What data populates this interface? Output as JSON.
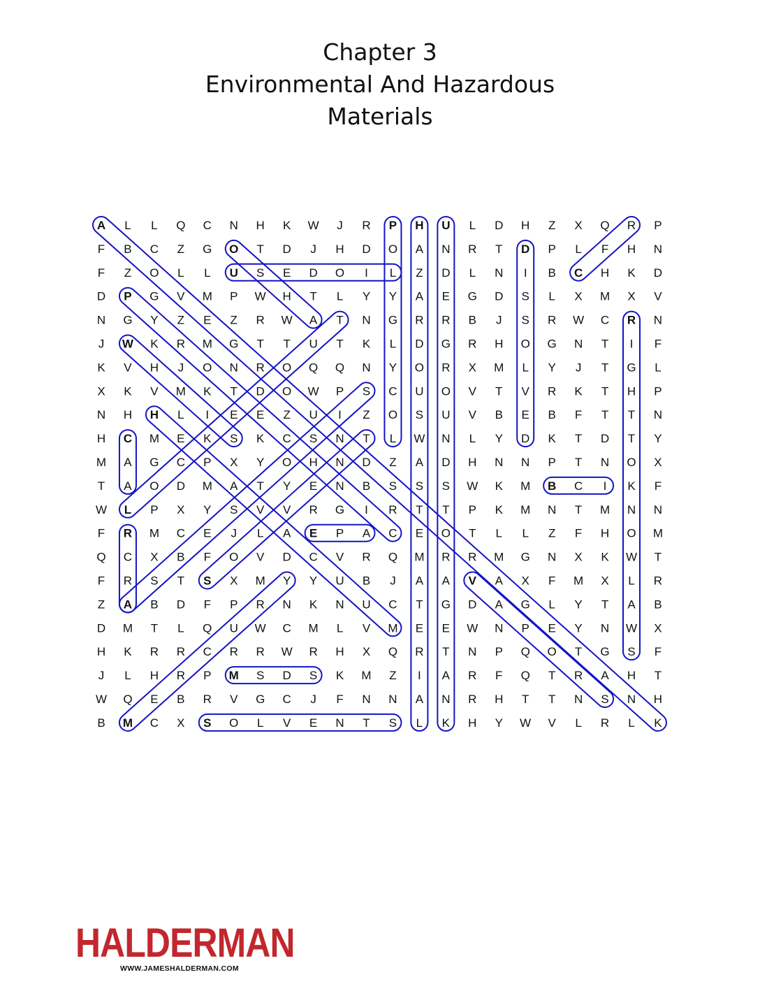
{
  "title": {
    "line1": "Chapter 3",
    "line2": "Environmental And Hazardous",
    "line3": "Materials"
  },
  "grid": [
    "ALLQCNHKWJRPHULDHZXQRP",
    "FBCZGOTDJHDOANRTDPLFHN",
    "FZOLLUSEDOILZDLNIBCHKD",
    "DPGVMPWHTLYYAEGDSLXMXV",
    "NGYZEZRWATNGRRBJSRWCRN",
    "JWKRMGTTUTKLDGRHOGNTIF",
    "KVHJONROQQNYORXMLYJTGL",
    "XKVMKTDOWPSCUOVTVRKTHP",
    "NHHLIEEZUIZOSUVBEBFTTN",
    "HCMEKSKCSNTLWNLYDKTDTY",
    "MAGCPXYOHNDZADHNNPTNOX",
    "TAODMATYENBSSSWKMBCIKF",
    "WLPXYSVVRGIRTTPKMNTMNN",
    "FRMCEJLAEPACEOTLLZFHOM",
    "QCXBFOVDCVRQMRRMGNXKWT",
    "FRSTSXMYYUBJAAVAXFMXLR",
    "ZABDFPRNKNUCTGDAGLYTAB",
    "DMTLQUWCMLVMEEWNPEYNWX",
    "HKRRCRRWRHXQRTNPQOTGSF",
    "JLHRPMSDSKMZIARFQTRAHT",
    "WQEBRVGCJFNNANRHTTNSNH",
    "BMCXSOLVENTSLKHYWVLRLK"
  ],
  "found_spans": [
    [
      [
        1,
        1
      ],
      [
        22,
        22
      ]
    ],
    [
      [
        2,
        6
      ],
      [
        5,
        9
      ]
    ],
    [
      [
        3,
        6
      ],
      [
        3,
        12
      ]
    ],
    [
      [
        1,
        12
      ],
      [
        10,
        12
      ]
    ],
    [
      [
        1,
        13
      ],
      [
        22,
        13
      ]
    ],
    [
      [
        1,
        14
      ],
      [
        22,
        14
      ]
    ],
    [
      [
        2,
        17
      ],
      [
        10,
        17
      ]
    ],
    [
      [
        3,
        19
      ],
      [
        1,
        21
      ]
    ],
    [
      [
        5,
        21
      ],
      [
        19,
        21
      ]
    ],
    [
      [
        12,
        18
      ],
      [
        12,
        20
      ]
    ],
    [
      [
        4,
        2
      ],
      [
        14,
        12
      ]
    ],
    [
      [
        6,
        2
      ],
      [
        10,
        6
      ]
    ],
    [
      [
        9,
        3
      ],
      [
        18,
        12
      ]
    ],
    [
      [
        14,
        9
      ],
      [
        14,
        11
      ]
    ],
    [
      [
        10,
        2
      ],
      [
        12,
        2
      ]
    ],
    [
      [
        14,
        2
      ],
      [
        17,
        2
      ]
    ],
    [
      [
        13,
        2
      ],
      [
        5,
        10
      ]
    ],
    [
      [
        17,
        2
      ],
      [
        8,
        11
      ]
    ],
    [
      [
        16,
        5
      ],
      [
        10,
        11
      ]
    ],
    [
      [
        22,
        2
      ],
      [
        16,
        8
      ]
    ],
    [
      [
        20,
        6
      ],
      [
        20,
        9
      ]
    ],
    [
      [
        22,
        5
      ],
      [
        22,
        12
      ]
    ],
    [
      [
        16,
        15
      ],
      [
        21,
        20
      ]
    ]
  ],
  "colors": {
    "highlight": "#1414c4",
    "logo": "#c1272d"
  },
  "logo": {
    "name": "HALDERMAN",
    "url": "WWW.JAMESHALDERMAN.COM"
  }
}
